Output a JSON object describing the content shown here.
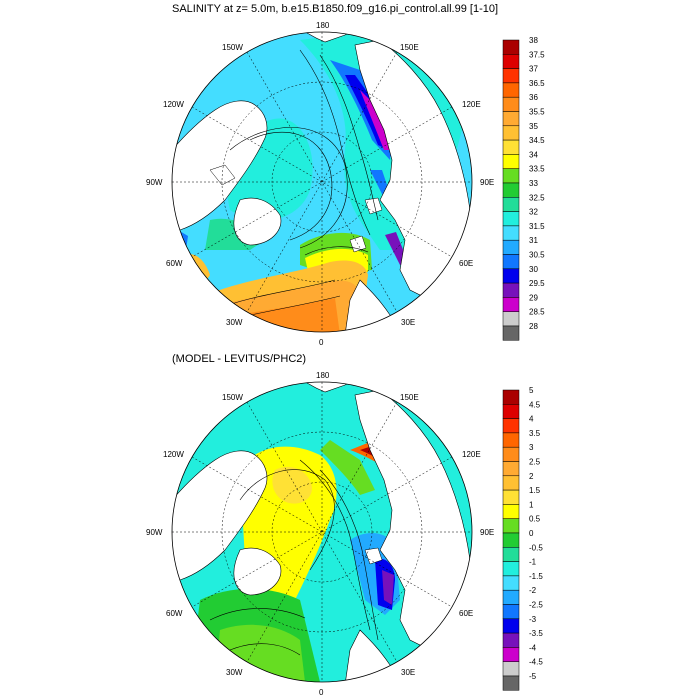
{
  "panels": [
    {
      "title": "SALINITY at z=   5.0m, b.e15.B1850.f09_g16.pi_control.all.99 [1-10]",
      "longitude_labels": {
        "top": "180",
        "top_left": "150W",
        "top_right": "150E",
        "upper_left": "120W",
        "upper_right": "120E",
        "left": "90W",
        "right": "90E",
        "lower_left": "60W",
        "lower_right": "60E",
        "bottom_left": "30W",
        "bottom_right": "30E",
        "bottom": "0"
      },
      "colorbar": {
        "labels": [
          "38",
          "37.5",
          "37",
          "36.5",
          "36",
          "35.5",
          "35",
          "34.5",
          "34",
          "33.5",
          "33",
          "32.5",
          "32",
          "31.5",
          "31",
          "30.5",
          "30",
          "29.5",
          "29",
          "28.5",
          "28"
        ],
        "colors": [
          "#aa0000",
          "#dd0000",
          "#ff3300",
          "#ff6600",
          "#ff8c1a",
          "#ffaa33",
          "#ffc033",
          "#ffe135",
          "#ffff00",
          "#66dd22",
          "#22cc33",
          "#22dd99",
          "#22eedd",
          "#44ddff",
          "#22aaff",
          "#1177ff",
          "#0000ee",
          "#7711bb",
          "#cc00cc",
          "#cccccc",
          "#666666"
        ]
      }
    },
    {
      "title": "(MODEL - LEVITUS/PHC2)",
      "longitude_labels": {
        "top": "180",
        "top_left": "150W",
        "top_right": "150E",
        "upper_left": "120W",
        "upper_right": "120E",
        "left": "90W",
        "right": "90E",
        "lower_left": "60W",
        "lower_right": "60E",
        "bottom_left": "30W",
        "bottom_right": "30E",
        "bottom": "0"
      },
      "colorbar": {
        "labels": [
          "5",
          "4.5",
          "4",
          "3.5",
          "3",
          "2.5",
          "2",
          "1.5",
          "1",
          "0.5",
          "0",
          "-0.5",
          "-1",
          "-1.5",
          "-2",
          "-2.5",
          "-3",
          "-3.5",
          "-4",
          "-4.5",
          "-5"
        ],
        "colors": [
          "#aa0000",
          "#dd0000",
          "#ff3300",
          "#ff6600",
          "#ff8c1a",
          "#ffaa33",
          "#ffc033",
          "#ffe135",
          "#ffff00",
          "#66dd22",
          "#22cc33",
          "#22dd99",
          "#22eedd",
          "#44ddff",
          "#22aaff",
          "#1177ff",
          "#0000ee",
          "#7711bb",
          "#cc00cc",
          "#cccccc",
          "#666666"
        ]
      }
    }
  ]
}
